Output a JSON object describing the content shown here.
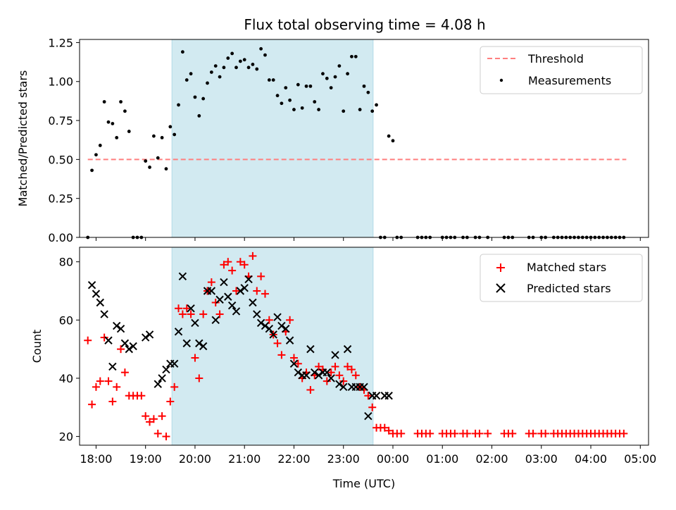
{
  "chart_data": [
    {
      "type": "scatter",
      "title": "Flux total observing time = 4.08 h",
      "xlabel": "",
      "ylabel": "Matched/Predicted stars",
      "xlim": [
        "17:40",
        "05:10"
      ],
      "ylim": [
        0,
        1.27
      ],
      "yticks": [
        "0.00",
        "0.25",
        "0.50",
        "0.75",
        "1.00",
        "1.25"
      ],
      "ytick_values": [
        0,
        0.25,
        0.5,
        0.75,
        1.0,
        1.25
      ],
      "shaded_span": [
        "19:32",
        "23:36"
      ],
      "threshold": {
        "name": "Threshold",
        "value": 0.5,
        "x": [
          "17:50",
          "04:43"
        ],
        "color": "#ff7f7f"
      },
      "series": [
        {
          "name": "Measurements",
          "color": "#000000",
          "x": [
            "17:50",
            "17:55",
            "18:00",
            "18:05",
            "18:10",
            "18:15",
            "18:20",
            "18:25",
            "18:30",
            "18:35",
            "18:40",
            "18:45",
            "18:50",
            "18:55",
            "19:00",
            "19:05",
            "19:10",
            "19:15",
            "19:20",
            "19:25",
            "19:30",
            "19:35",
            "19:40",
            "19:45",
            "19:50",
            "19:55",
            "20:00",
            "20:05",
            "20:10",
            "20:15",
            "20:20",
            "20:25",
            "20:30",
            "20:35",
            "20:40",
            "20:45",
            "20:50",
            "20:55",
            "21:00",
            "21:05",
            "21:10",
            "21:15",
            "21:20",
            "21:25",
            "21:30",
            "21:35",
            "21:40",
            "21:45",
            "21:50",
            "21:55",
            "22:00",
            "22:05",
            "22:10",
            "22:15",
            "22:20",
            "22:25",
            "22:30",
            "22:35",
            "22:40",
            "22:45",
            "22:50",
            "22:55",
            "23:00",
            "23:05",
            "23:10",
            "23:15",
            "23:20",
            "23:25",
            "23:30",
            "23:35",
            "23:40",
            "23:45",
            "23:50",
            "23:55",
            "00:00",
            "00:05",
            "00:10",
            "00:30",
            "00:35",
            "00:40",
            "00:45",
            "01:00",
            "01:05",
            "01:10",
            "01:15",
            "01:25",
            "01:30",
            "01:40",
            "01:45",
            "01:55",
            "02:15",
            "02:20",
            "02:25",
            "02:45",
            "02:50",
            "03:00",
            "03:05",
            "03:15",
            "03:20",
            "03:25",
            "03:30",
            "03:35",
            "03:40",
            "03:45",
            "03:50",
            "03:55",
            "04:00",
            "04:05",
            "04:10",
            "04:15",
            "04:20",
            "04:25",
            "04:30",
            "04:35",
            "04:40"
          ],
          "y": [
            0.0,
            0.43,
            0.53,
            0.59,
            0.87,
            0.74,
            0.73,
            0.64,
            0.87,
            0.81,
            0.68,
            0.0,
            0.0,
            0.0,
            0.49,
            0.45,
            0.65,
            0.51,
            0.64,
            0.44,
            0.71,
            0.66,
            0.85,
            1.19,
            1.01,
            1.05,
            0.9,
            0.78,
            0.89,
            0.99,
            1.06,
            1.1,
            1.03,
            1.09,
            1.15,
            1.18,
            1.09,
            1.13,
            1.14,
            1.09,
            1.11,
            1.08,
            1.21,
            1.17,
            1.01,
            1.01,
            0.91,
            0.86,
            0.96,
            0.88,
            0.82,
            0.98,
            0.83,
            0.97,
            0.97,
            0.87,
            0.82,
            1.05,
            1.02,
            0.96,
            1.03,
            1.1,
            0.81,
            1.05,
            1.16,
            1.16,
            0.82,
            0.97,
            0.93,
            0.81,
            0.85,
            0.0,
            0.0,
            0.65,
            0.62,
            0.0,
            0.0,
            0.0,
            0.0,
            0.0,
            0.0,
            0.0,
            0.0,
            0.0,
            0.0,
            0.0,
            0.0,
            0.0,
            0.0,
            0.0,
            0.0,
            0.0,
            0.0,
            0.0,
            0.0,
            0.0,
            0.0,
            0.0,
            0.0,
            0.0,
            0.0,
            0.0,
            0.0,
            0.0,
            0.0,
            0.0,
            0.0,
            0.0,
            0.0,
            0.0,
            0.0,
            0.0,
            0.0,
            0.0,
            0.0
          ]
        }
      ],
      "legend": {
        "location": "top-right",
        "entries": [
          "Threshold",
          "Measurements"
        ]
      }
    },
    {
      "type": "scatter",
      "title": "",
      "xlabel": "Time (UTC)",
      "ylabel": "Count",
      "xlim": [
        "17:40",
        "05:10"
      ],
      "ylim": [
        17,
        85
      ],
      "yticks": [
        "20",
        "40",
        "60",
        "80"
      ],
      "ytick_values": [
        20,
        40,
        60,
        80
      ],
      "xticks": [
        "18:00",
        "19:00",
        "20:00",
        "21:00",
        "22:00",
        "23:00",
        "00:00",
        "01:00",
        "02:00",
        "03:00",
        "04:00",
        "05:00"
      ],
      "shaded_span": [
        "19:32",
        "23:36"
      ],
      "series": [
        {
          "name": "Matched stars",
          "color": "#ff0000",
          "marker": "plus",
          "x": [
            "17:50",
            "17:55",
            "18:00",
            "18:05",
            "18:10",
            "18:15",
            "18:20",
            "18:25",
            "18:30",
            "18:35",
            "18:40",
            "18:45",
            "18:50",
            "18:55",
            "19:00",
            "19:05",
            "19:10",
            "19:15",
            "19:20",
            "19:25",
            "19:30",
            "19:35",
            "19:40",
            "19:45",
            "19:50",
            "19:55",
            "20:00",
            "20:05",
            "20:10",
            "20:15",
            "20:20",
            "20:25",
            "20:30",
            "20:35",
            "20:40",
            "20:45",
            "20:50",
            "20:55",
            "21:00",
            "21:05",
            "21:10",
            "21:15",
            "21:20",
            "21:25",
            "21:30",
            "21:35",
            "21:40",
            "21:45",
            "21:50",
            "21:55",
            "22:00",
            "22:05",
            "22:10",
            "22:15",
            "22:20",
            "22:25",
            "22:30",
            "22:35",
            "22:40",
            "22:45",
            "22:50",
            "22:55",
            "23:00",
            "23:05",
            "23:10",
            "23:15",
            "23:20",
            "23:25",
            "23:30",
            "23:35",
            "23:40",
            "23:45",
            "23:50",
            "23:55",
            "00:00",
            "00:05",
            "00:10",
            "00:30",
            "00:35",
            "00:40",
            "00:45",
            "01:00",
            "01:05",
            "01:10",
            "01:15",
            "01:25",
            "01:30",
            "01:40",
            "01:45",
            "01:55",
            "02:15",
            "02:20",
            "02:25",
            "02:45",
            "02:50",
            "03:00",
            "03:05",
            "03:15",
            "03:20",
            "03:25",
            "03:30",
            "03:35",
            "03:40",
            "03:45",
            "03:50",
            "03:55",
            "04:00",
            "04:05",
            "04:10",
            "04:15",
            "04:20",
            "04:25",
            "04:30",
            "04:35",
            "04:40"
          ],
          "y": [
            53,
            31,
            37,
            39,
            54,
            39,
            32,
            37,
            50,
            42,
            34,
            34,
            34,
            34,
            27,
            25,
            26,
            21,
            27,
            20,
            32,
            37,
            64,
            62,
            64,
            62,
            47,
            40,
            62,
            70,
            73,
            66,
            62,
            79,
            80,
            77,
            70,
            80,
            79,
            75,
            82,
            70,
            75,
            69,
            60,
            55,
            52,
            48,
            56,
            60,
            47,
            45,
            40,
            42,
            36,
            41,
            44,
            43,
            39,
            42,
            44,
            41,
            39,
            44,
            43,
            41,
            37,
            36,
            34,
            30,
            23,
            23,
            23,
            22,
            21,
            21,
            21,
            21,
            21,
            21,
            21,
            21,
            21,
            21,
            21,
            21,
            21,
            21,
            21,
            21,
            21,
            21,
            21,
            21,
            21,
            21,
            21,
            21,
            21,
            21,
            21,
            21,
            21,
            21,
            21,
            21,
            21,
            21,
            21,
            21,
            21,
            21,
            21,
            21,
            21
          ]
        },
        {
          "name": "Predicted stars",
          "color": "#000000",
          "marker": "x",
          "x": [
            "17:55",
            "18:00",
            "18:05",
            "18:10",
            "18:15",
            "18:20",
            "18:25",
            "18:30",
            "18:35",
            "18:40",
            "18:45",
            "19:00",
            "19:05",
            "19:15",
            "19:20",
            "19:25",
            "19:30",
            "19:35",
            "19:40",
            "19:45",
            "19:50",
            "19:55",
            "20:00",
            "20:05",
            "20:10",
            "20:15",
            "20:20",
            "20:25",
            "20:30",
            "20:35",
            "20:40",
            "20:45",
            "20:50",
            "20:55",
            "21:00",
            "21:05",
            "21:10",
            "21:15",
            "21:20",
            "21:25",
            "21:30",
            "21:35",
            "21:40",
            "21:45",
            "21:50",
            "21:55",
            "22:00",
            "22:05",
            "22:10",
            "22:15",
            "22:20",
            "22:25",
            "22:30",
            "22:35",
            "22:40",
            "22:45",
            "22:50",
            "22:55",
            "23:00",
            "23:05",
            "23:10",
            "23:15",
            "23:20",
            "23:25",
            "23:30",
            "23:35",
            "23:40",
            "23:50",
            "23:55"
          ],
          "y": [
            72,
            69,
            66,
            62,
            53,
            44,
            58,
            57,
            52,
            50,
            51,
            54,
            55,
            38,
            40,
            43,
            45,
            45,
            56,
            75,
            52,
            64,
            59,
            52,
            51,
            70,
            70,
            60,
            67,
            73,
            68,
            65,
            63,
            70,
            71,
            74,
            66,
            62,
            59,
            58,
            57,
            55,
            61,
            58,
            57,
            53,
            45,
            42,
            41,
            41,
            50,
            42,
            41,
            42,
            42,
            40,
            48,
            38,
            37,
            50,
            37,
            37,
            37,
            37,
            27,
            34,
            34,
            34,
            34
          ]
        }
      ],
      "legend": {
        "location": "top-right",
        "entries": [
          "Matched stars",
          "Predicted stars"
        ]
      }
    }
  ]
}
